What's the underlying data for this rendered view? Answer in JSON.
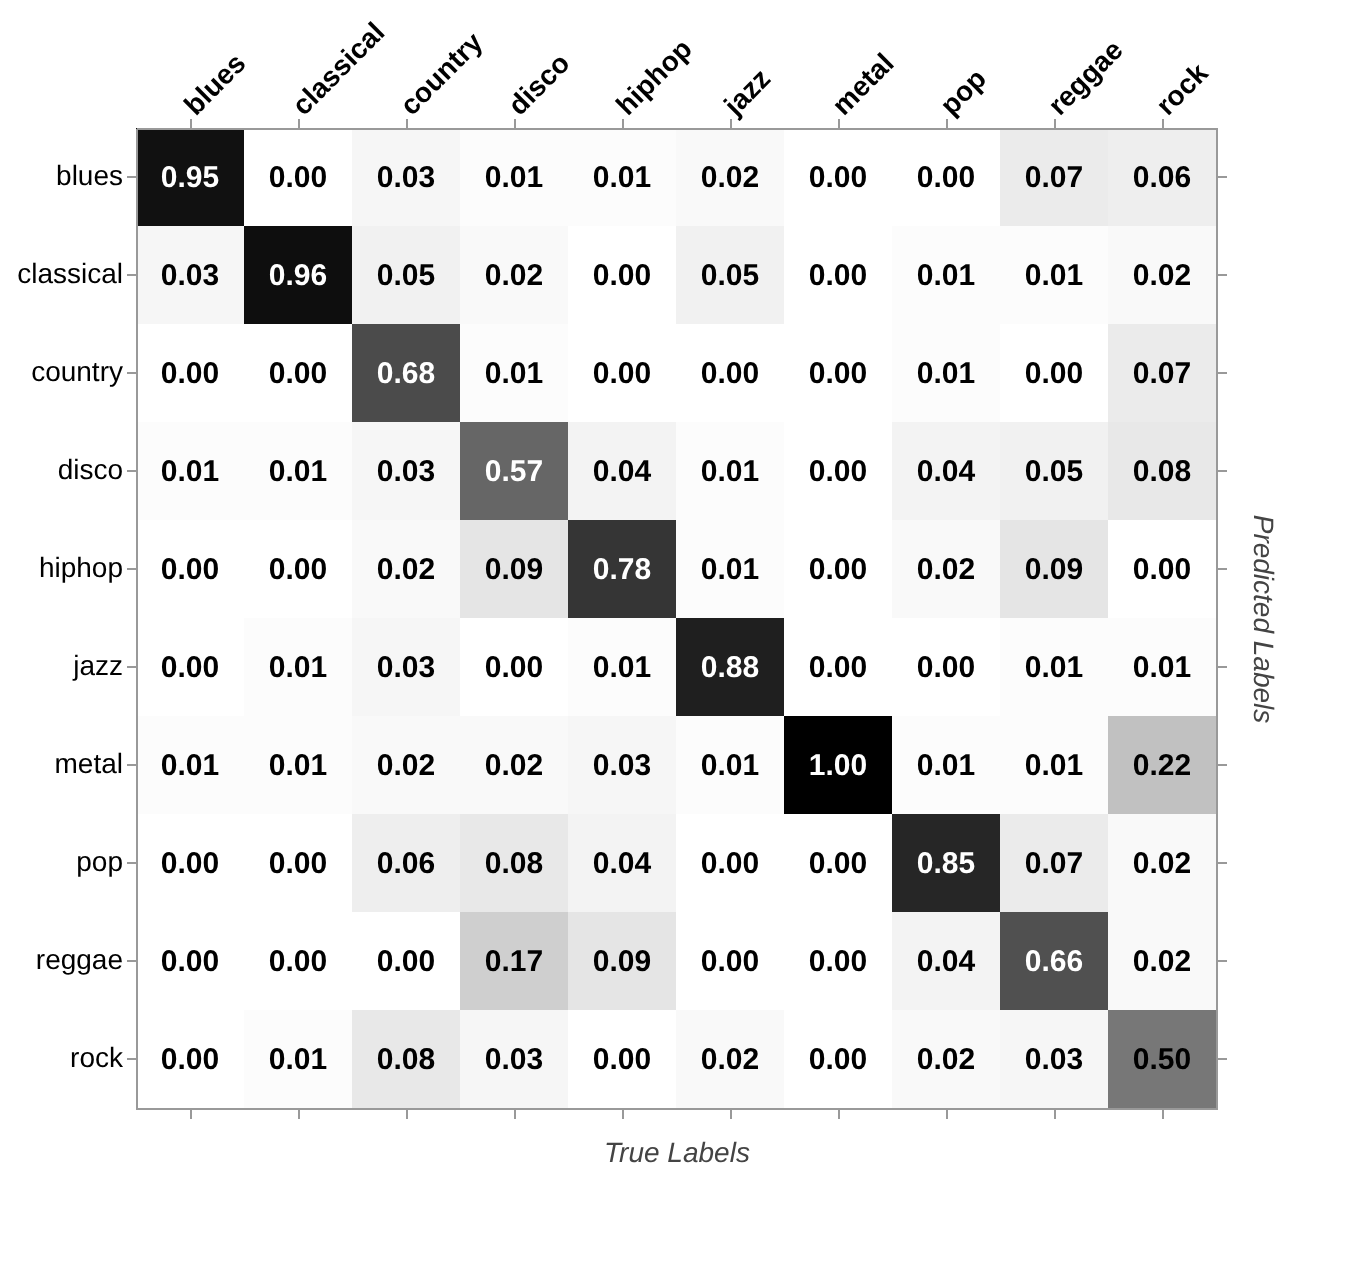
{
  "chart_data": {
    "type": "heatmap",
    "xlabel": "True Labels",
    "ylabel": "Predicted Labels",
    "categories": [
      "blues",
      "classical",
      "country",
      "disco",
      "hiphop",
      "jazz",
      "metal",
      "pop",
      "reggae",
      "rock"
    ],
    "y_categories": [
      "blues",
      "classical",
      "country",
      "disco",
      "hiphop",
      "jazz",
      "metal",
      "pop",
      "reggae",
      "rock"
    ],
    "cells": [
      [
        0.95,
        0.0,
        0.03,
        0.01,
        0.01,
        0.02,
        0.0,
        0.0,
        0.07,
        0.06
      ],
      [
        0.03,
        0.96,
        0.05,
        0.02,
        0.0,
        0.05,
        0.0,
        0.01,
        0.01,
        0.02
      ],
      [
        0.0,
        0.0,
        0.68,
        0.01,
        0.0,
        0.0,
        0.0,
        0.01,
        0.0,
        0.07
      ],
      [
        0.01,
        0.01,
        0.03,
        0.57,
        0.04,
        0.01,
        0.0,
        0.04,
        0.05,
        0.08
      ],
      [
        0.0,
        0.0,
        0.02,
        0.09,
        0.78,
        0.01,
        0.0,
        0.02,
        0.09,
        0.0
      ],
      [
        0.0,
        0.01,
        0.03,
        0.0,
        0.01,
        0.88,
        0.0,
        0.0,
        0.01,
        0.01
      ],
      [
        0.01,
        0.01,
        0.02,
        0.02,
        0.03,
        0.01,
        1.0,
        0.01,
        0.01,
        0.22
      ],
      [
        0.0,
        0.0,
        0.06,
        0.08,
        0.04,
        0.0,
        0.0,
        0.85,
        0.07,
        0.02
      ],
      [
        0.0,
        0.0,
        0.0,
        0.17,
        0.09,
        0.0,
        0.0,
        0.04,
        0.66,
        0.02
      ],
      [
        0.0,
        0.01,
        0.08,
        0.03,
        0.0,
        0.02,
        0.0,
        0.02,
        0.03,
        0.5
      ]
    ],
    "cell_labels": [
      [
        "0.95",
        "0.00",
        "0.03",
        "0.01",
        "0.01",
        "0.02",
        "0.00",
        "0.00",
        "0.07",
        "0.06"
      ],
      [
        "0.03",
        "0.96",
        "0.05",
        "0.02",
        "0.00",
        "0.05",
        "0.00",
        "0.01",
        "0.01",
        "0.02"
      ],
      [
        "0.00",
        "0.00",
        "0.68",
        "0.01",
        "0.00",
        "0.00",
        "0.00",
        "0.01",
        "0.00",
        "0.07"
      ],
      [
        "0.01",
        "0.01",
        "0.03",
        "0.57",
        "0.04",
        "0.01",
        "0.00",
        "0.04",
        "0.05",
        "0.08"
      ],
      [
        "0.00",
        "0.00",
        "0.02",
        "0.09",
        "0.78",
        "0.01",
        "0.00",
        "0.02",
        "0.09",
        "0.00"
      ],
      [
        "0.00",
        "0.01",
        "0.03",
        "0.00",
        "0.01",
        "0.88",
        "0.00",
        "0.00",
        "0.01",
        "0.01"
      ],
      [
        "0.01",
        "0.01",
        "0.02",
        "0.02",
        "0.03",
        "0.01",
        "1.00",
        "0.01",
        "0.01",
        "0.22"
      ],
      [
        "0.00",
        "0.00",
        "0.06",
        "0.08",
        "0.04",
        "0.00",
        "0.00",
        "0.85",
        "0.07",
        "0.02"
      ],
      [
        "0.00",
        "0.00",
        "0.00",
        "0.17",
        "0.09",
        "0.00",
        "0.00",
        "0.04",
        "0.66",
        "0.02"
      ],
      [
        "0.00",
        "0.01",
        "0.08",
        "0.03",
        "0.00",
        "0.02",
        "0.00",
        "0.02",
        "0.03",
        "0.50"
      ]
    ]
  }
}
